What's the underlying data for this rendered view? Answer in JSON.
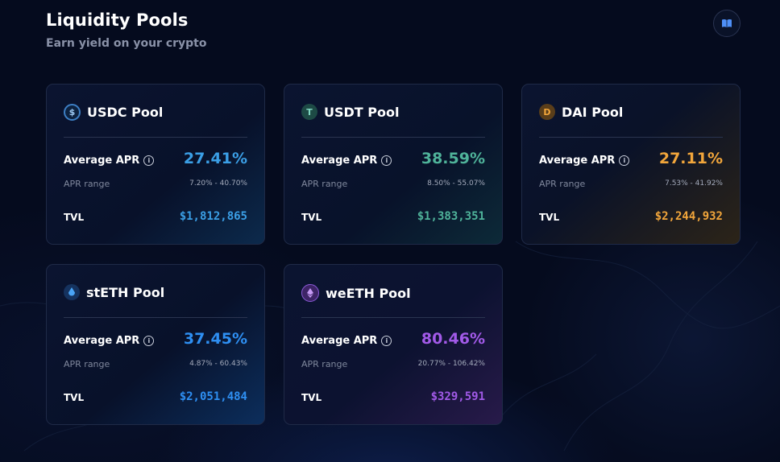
{
  "header": {
    "title": "Liquidity Pools",
    "subtitle": "Earn yield on your crypto",
    "docs_icon": "book-icon"
  },
  "labels": {
    "average_apr": "Average APR",
    "apr_range": "APR range",
    "tvl": "TVL",
    "info_icon": "info-icon"
  },
  "pools": [
    {
      "name": "USDC Pool",
      "icon": "usdc-icon",
      "average_apr": "27.41%",
      "apr_range": "7.20% - 40.70%",
      "tvl": "$1,812,865",
      "accent": "#3b9fe6"
    },
    {
      "name": "USDT Pool",
      "icon": "usdt-icon",
      "average_apr": "38.59%",
      "apr_range": "8.50% - 55.07%",
      "tvl": "$1,383,351",
      "accent": "#4fb39a"
    },
    {
      "name": "DAI Pool",
      "icon": "dai-icon",
      "average_apr": "27.11%",
      "apr_range": "7.53% - 41.92%",
      "tvl": "$2,244,932",
      "accent": "#f2a63b"
    },
    {
      "name": "stETH Pool",
      "icon": "steth-icon",
      "average_apr": "37.45%",
      "apr_range": "4.87% - 60.43%",
      "tvl": "$2,051,484",
      "accent": "#2e8ff2"
    },
    {
      "name": "weETH Pool",
      "icon": "weeth-icon",
      "average_apr": "80.46%",
      "apr_range": "20.77% - 106.42%",
      "tvl": "$329,591",
      "accent": "#a25ae8"
    }
  ]
}
